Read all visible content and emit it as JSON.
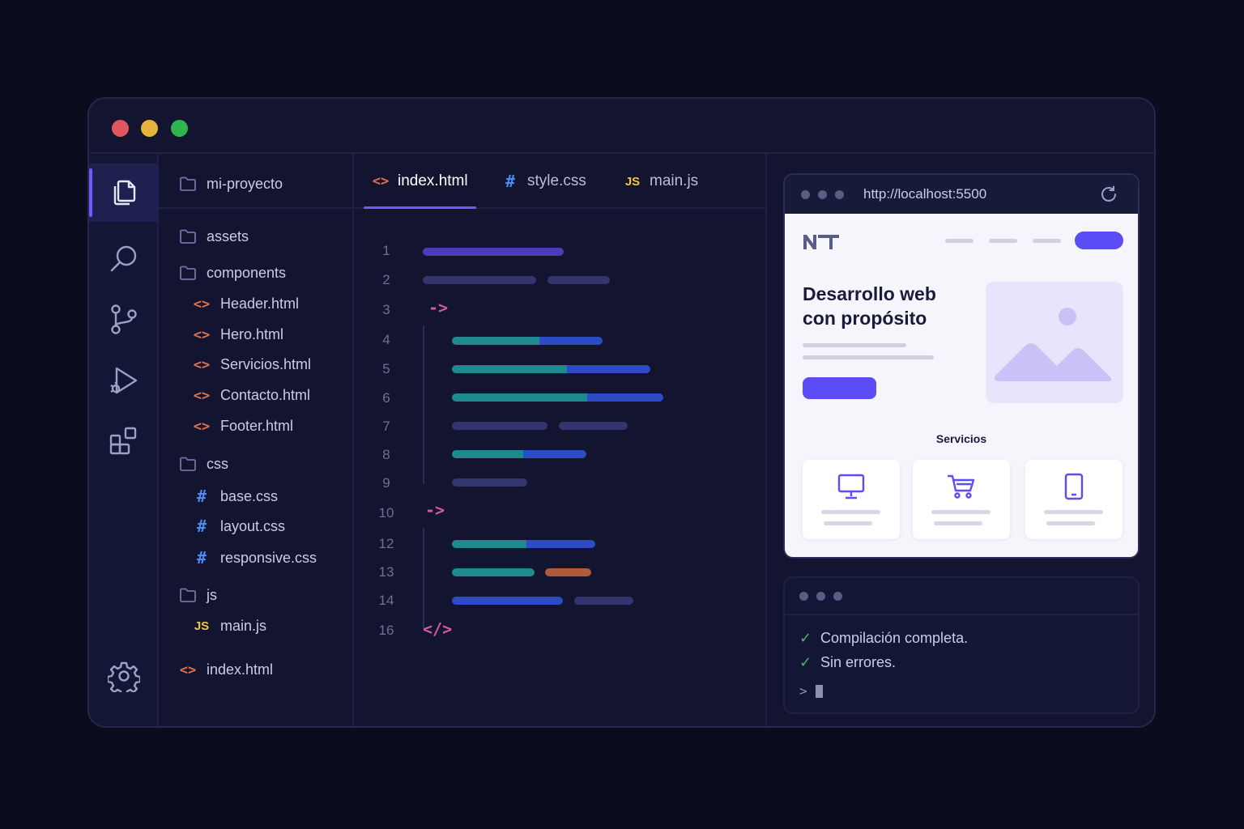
{
  "explorer": {
    "root": "mi-proyecto",
    "folders": {
      "assets": "assets",
      "components": "components",
      "css": "css",
      "js": "js"
    },
    "components_files": [
      "Header.html",
      "Hero.html",
      "Servicios.html",
      "Contacto.html",
      "Footer.html"
    ],
    "css_files": [
      "base.css",
      "layout.css",
      "responsive.css"
    ],
    "js_files": [
      "main.js"
    ],
    "root_file": "index.html"
  },
  "icons": {
    "html": "<>",
    "css": "#",
    "js": "JS",
    "tag_open": "->",
    "tag_close": "</>"
  },
  "tabs": [
    {
      "label": "index.html",
      "icon": "html-icon",
      "active": true
    },
    {
      "label": "style.css",
      "icon": "css-icon",
      "active": false
    },
    {
      "label": "main.js",
      "icon": "js-icon",
      "active": false
    }
  ],
  "editor": {
    "line_numbers": [
      "1",
      "2",
      "3",
      "4",
      "5",
      "6",
      "7",
      "8",
      "9",
      "10",
      "12",
      "13",
      "14",
      "16"
    ]
  },
  "browser": {
    "url": "http://localhost:5500",
    "site": {
      "hero_title_line1": "Desarrollo web",
      "hero_title_line2": "con propósito",
      "services_title": "Servicios",
      "service_icons": [
        "monitor-icon",
        "cart-icon",
        "tablet-icon"
      ]
    }
  },
  "terminal": {
    "lines": [
      "Compilación completa.",
      "Sin errores."
    ],
    "prompt": ">"
  },
  "colors": {
    "accent": "#6a5cff",
    "site_primary": "#5b4cf5",
    "html_icon": "#e0724f",
    "css_icon": "#4b8cf0",
    "js_icon": "#f2c53d",
    "success": "#3bbf5a"
  }
}
